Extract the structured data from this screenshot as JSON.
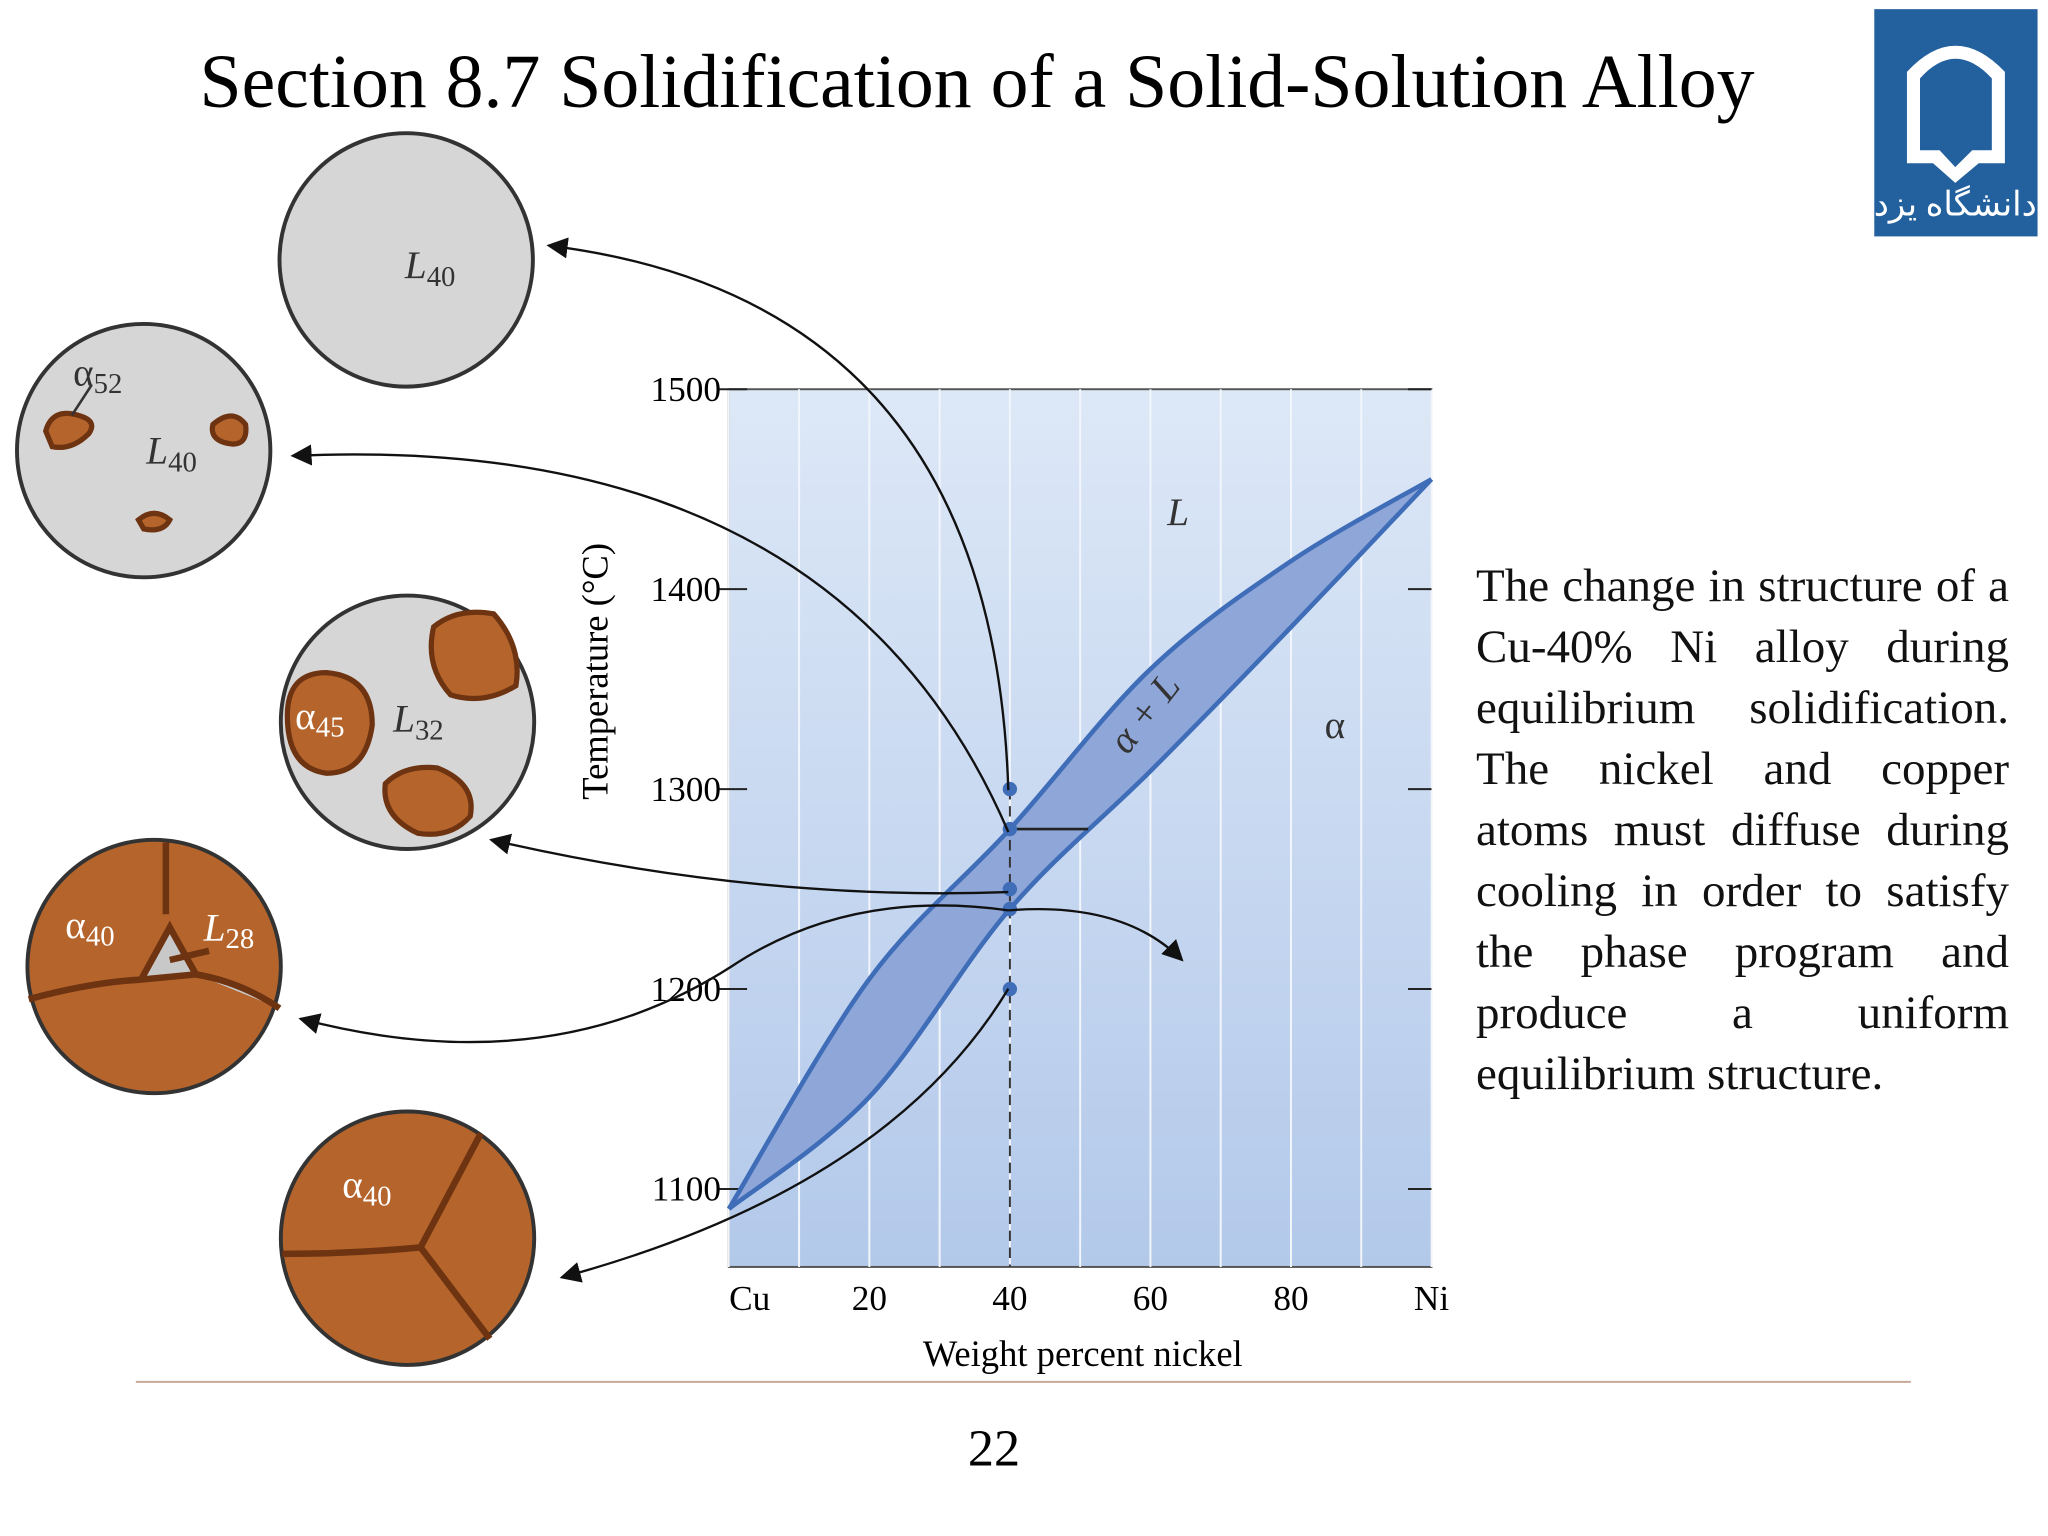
{
  "header": {
    "title": "Section 8.7 Solidification of a Solid-Solution Alloy",
    "logo_text": "دانشگاه یزد"
  },
  "chart_data": {
    "type": "phase-diagram",
    "xlabel": "Weight percent nickel",
    "ylabel": "Temperature (°C)",
    "xlim": [
      0,
      100
    ],
    "ylim": [
      1061,
      1500
    ],
    "xticks": [
      {
        "value": 0,
        "label": "Cu"
      },
      20,
      40,
      60,
      80,
      {
        "value": 100,
        "label": "Ni"
      }
    ],
    "xminor": [
      10,
      30,
      50,
      70,
      90
    ],
    "yticks": [
      1100,
      1200,
      1300,
      1400,
      1500
    ],
    "grid": true,
    "series": [
      {
        "x": [
          0,
          20,
          40,
          60,
          80,
          100
        ],
        "values": [
          1090,
          1205,
          1280,
          1360,
          1414,
          1455
        ],
        "color": "#3f6db8"
      },
      {
        "x": [
          0,
          20,
          40,
          60,
          80,
          100
        ],
        "values": [
          1090,
          1146,
          1240,
          1309,
          1381,
          1455
        ],
        "color": "#3f6db8"
      }
    ],
    "region_color": "#8fa6d8",
    "points": {
      "x": 40,
      "values": [
        1300,
        1280,
        1250,
        1240,
        1200
      ],
      "color": "#3f6db8"
    },
    "regions": [
      "L",
      "α",
      "α + L"
    ]
  },
  "micrographs": [
    {
      "labels": [
        {
          "main": "L",
          "sub": "40"
        }
      ]
    },
    {
      "labels": [
        {
          "main": "α",
          "sub": "52"
        },
        {
          "main": "L",
          "sub": "40"
        }
      ]
    },
    {
      "labels": [
        {
          "main": "α",
          "sub": "45"
        },
        {
          "main": "L",
          "sub": "32"
        }
      ]
    },
    {
      "labels": [
        {
          "main": "α",
          "sub": "40"
        },
        {
          "main": "L",
          "sub": "28"
        }
      ]
    },
    {
      "labels": [
        {
          "main": "α",
          "sub": "40"
        }
      ]
    }
  ],
  "body": {
    "text": "The change in structure of a Cu-40% Ni alloy during equilibrium solidification. The nickel and copper atoms must diffuse during cooling in order to satisfy the phase program and produce a uniform equilibrium structure."
  },
  "footer": {
    "page_number": "22"
  }
}
